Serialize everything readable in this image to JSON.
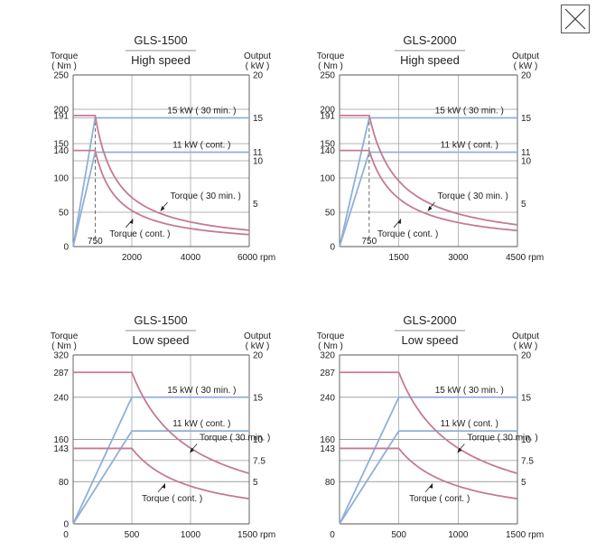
{
  "close_button": {
    "icon": "close-icon"
  },
  "chart_data": [
    {
      "type": "line",
      "model": "GLS-1500",
      "mode": "High speed",
      "left_axis": {
        "label_top": "Torque",
        "label_unit": "( Nm )",
        "ticks": [
          "250",
          "200",
          "191",
          "150",
          "140",
          "100",
          "50",
          "0"
        ],
        "tick_values": [
          250,
          200,
          191,
          150,
          140,
          100,
          50,
          0
        ],
        "ylim": [
          0,
          250
        ]
      },
      "right_axis": {
        "label_top": "Output",
        "label_unit": "( kW )",
        "ticks": [
          "20",
          "15",
          "11",
          "10",
          "5"
        ],
        "tick_values": [
          20,
          15,
          11,
          10,
          5
        ],
        "ylim": [
          0,
          20
        ]
      },
      "x_axis": {
        "ticks": [
          "2000",
          "4000",
          "6000 rpm"
        ],
        "tick_values": [
          2000,
          4000,
          6000
        ],
        "xlim": [
          0,
          6000
        ],
        "base_speed": 750,
        "base_speed_label": "750"
      },
      "grid": {
        "x": [
          2000,
          4000
        ],
        "y_left": [
          200,
          150,
          100,
          50
        ],
        "y_right": [
          15,
          10
        ]
      },
      "series": [
        {
          "name": "Torque ( 30 min. )",
          "kind": "torque",
          "axis": "left",
          "color": "#c47a95",
          "const_value": 191,
          "base_speed": 750
        },
        {
          "name": "Torque ( cont. )",
          "kind": "torque",
          "axis": "left",
          "color": "#c47a95",
          "const_value": 140,
          "base_speed": 750
        },
        {
          "name": "15 kW ( 30 min. )",
          "kind": "power",
          "axis": "right",
          "color": "#8fb0d8",
          "value": 15,
          "base_speed": 750
        },
        {
          "name": "11 kW ( cont. )",
          "kind": "power",
          "axis": "right",
          "color": "#8fb0d8",
          "value": 11,
          "base_speed": 750
        }
      ],
      "label_30min_anchor": [
        3000,
        75
      ],
      "label_cont_anchor": [
        2100,
        20
      ]
    },
    {
      "type": "line",
      "model": "GLS-2000",
      "mode": "High speed",
      "left_axis": {
        "label_top": "Torque",
        "label_unit": "( Nm )",
        "ticks": [
          "250",
          "200",
          "191",
          "150",
          "140",
          "100",
          "50",
          "0"
        ],
        "tick_values": [
          250,
          200,
          191,
          150,
          140,
          100,
          50,
          0
        ],
        "ylim": [
          0,
          250
        ]
      },
      "right_axis": {
        "label_top": "Output",
        "label_unit": "( kW )",
        "ticks": [
          "20",
          "15",
          "11",
          "10",
          "5"
        ],
        "tick_values": [
          20,
          15,
          11,
          10,
          5
        ],
        "ylim": [
          0,
          20
        ]
      },
      "x_axis": {
        "ticks": [
          "1500",
          "3000",
          "4500 rpm"
        ],
        "tick_values": [
          1500,
          3000,
          4500
        ],
        "xlim": [
          0,
          4500
        ],
        "base_speed": 750,
        "base_speed_label": "750"
      },
      "grid": {
        "x": [
          1500,
          3000
        ],
        "y_left": [
          200,
          150,
          100,
          50
        ],
        "y_right": [
          15,
          10
        ]
      },
      "series": [
        {
          "name": "Torque ( 30 min. )",
          "kind": "torque",
          "axis": "left",
          "color": "#c47a95",
          "const_value": 191,
          "base_speed": 750
        },
        {
          "name": "Torque ( cont. )",
          "kind": "torque",
          "axis": "left",
          "color": "#c47a95",
          "const_value": 140,
          "base_speed": 750
        },
        {
          "name": "15 kW ( 30 min. )",
          "kind": "power",
          "axis": "right",
          "color": "#8fb0d8",
          "value": 15,
          "base_speed": 750
        },
        {
          "name": "11 kW ( cont. )",
          "kind": "power",
          "axis": "right",
          "color": "#8fb0d8",
          "value": 11,
          "base_speed": 750
        }
      ],
      "label_30min_anchor": [
        2250,
        75
      ],
      "label_cont_anchor": [
        1600,
        20
      ]
    },
    {
      "type": "line",
      "model": "GLS-1500",
      "mode": "Low speed",
      "left_axis": {
        "label_top": "Torque",
        "label_unit": "( Nm )",
        "ticks": [
          "320",
          "287",
          "240",
          "160",
          "143",
          "80",
          "0"
        ],
        "tick_values": [
          320,
          287,
          240,
          160,
          143,
          80,
          0
        ],
        "ylim": [
          0,
          320
        ]
      },
      "right_axis": {
        "label_top": "Output",
        "label_unit": "( kW )",
        "ticks": [
          "20",
          "15",
          "10",
          "7.5",
          "5"
        ],
        "tick_values": [
          20,
          15,
          10,
          7.5,
          5
        ],
        "ylim": [
          0,
          20
        ]
      },
      "x_axis": {
        "ticks": [
          "0",
          "500",
          "1000",
          "1500 rpm"
        ],
        "tick_values": [
          0,
          500,
          1000,
          1500
        ],
        "xlim": [
          0,
          1500
        ],
        "base_speed": 500
      },
      "grid": {
        "x": [
          500,
          1000
        ],
        "y_left": [
          240,
          160,
          80
        ],
        "y_right": [
          15,
          10,
          7.5,
          5
        ]
      },
      "series": [
        {
          "name": "Torque ( 30 min. )",
          "kind": "torque",
          "axis": "left",
          "color": "#c47a95",
          "const_value": 287,
          "base_speed": 500
        },
        {
          "name": "Torque ( cont. )",
          "kind": "torque",
          "axis": "left",
          "color": "#c47a95",
          "const_value": 143,
          "base_speed": 500
        },
        {
          "name": "15 kW ( 30 min. )",
          "kind": "power",
          "axis": "right",
          "color": "#8fb0d8",
          "value": 15,
          "base_speed": 500
        },
        {
          "name": "11 kW ( cont. )",
          "kind": "power",
          "axis": "right",
          "color": "#8fb0d8",
          "value": 11,
          "base_speed": 500
        }
      ],
      "label_30min_anchor": [
        1000,
        165
      ],
      "label_cont_anchor": [
        800,
        50
      ]
    },
    {
      "type": "line",
      "model": "GLS-2000",
      "mode": "Low speed",
      "left_axis": {
        "label_top": "Torque",
        "label_unit": "( Nm )",
        "ticks": [
          "320",
          "287",
          "240",
          "160",
          "143",
          "80"
        ],
        "tick_values": [
          320,
          287,
          240,
          160,
          143,
          80
        ],
        "ylim": [
          0,
          320
        ]
      },
      "right_axis": {
        "label_top": "Output",
        "label_unit": "( kW )",
        "ticks": [
          "20",
          "15",
          "10",
          "7.5",
          "5"
        ],
        "tick_values": [
          20,
          15,
          10,
          7.5,
          5
        ],
        "ylim": [
          0,
          20
        ]
      },
      "x_axis": {
        "ticks": [
          "0",
          "500",
          "1000",
          "1500 rpm"
        ],
        "tick_values": [
          0,
          500,
          1000,
          1500
        ],
        "xlim": [
          0,
          1500
        ],
        "base_speed": 500
      },
      "grid": {
        "x": [
          500,
          1000
        ],
        "y_left": [
          240,
          160,
          80
        ],
        "y_right": [
          15,
          10,
          7.5,
          5
        ]
      },
      "series": [
        {
          "name": "Torque ( 30 min. )",
          "kind": "torque",
          "axis": "left",
          "color": "#c47a95",
          "const_value": 287,
          "base_speed": 500
        },
        {
          "name": "Torque ( cont. )",
          "kind": "torque",
          "axis": "left",
          "color": "#c47a95",
          "const_value": 143,
          "base_speed": 500
        },
        {
          "name": "15 kW ( 30 min. )",
          "kind": "power",
          "axis": "right",
          "color": "#8fb0d8",
          "value": 15,
          "base_speed": 500
        },
        {
          "name": "11 kW ( cont. )",
          "kind": "power",
          "axis": "right",
          "color": "#8fb0d8",
          "value": 11,
          "base_speed": 500
        }
      ],
      "label_30min_anchor": [
        1000,
        165
      ],
      "label_cont_anchor": [
        800,
        50
      ]
    }
  ]
}
